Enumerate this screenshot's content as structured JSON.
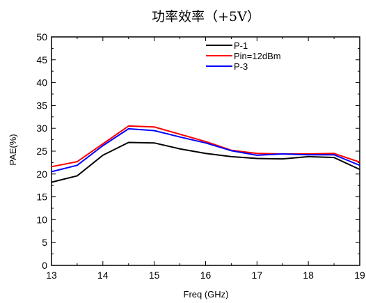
{
  "chart_data": {
    "type": "line",
    "title": "功率效率（+5V）",
    "xlabel": "Freq (GHz)",
    "ylabel": "PAE(%)",
    "xlim": [
      13,
      19
    ],
    "ylim": [
      0,
      50
    ],
    "xticks": [
      13,
      14,
      15,
      16,
      17,
      18,
      19
    ],
    "yticks": [
      0,
      5,
      10,
      15,
      20,
      25,
      30,
      35,
      40,
      45,
      50
    ],
    "grid": false,
    "legend_position": "top-right",
    "x": [
      13,
      13.5,
      14,
      14.5,
      15,
      15.5,
      16,
      16.5,
      17,
      17.5,
      18,
      18.5,
      19
    ],
    "series": [
      {
        "name": "P-1",
        "color": "#000000",
        "values": [
          18.2,
          19.6,
          24.1,
          26.9,
          26.8,
          25.5,
          24.5,
          23.8,
          23.4,
          23.3,
          23.8,
          23.6,
          21.0
        ]
      },
      {
        "name": "Pin=12dBm",
        "color": "#ff0000",
        "values": [
          21.6,
          22.7,
          26.6,
          30.5,
          30.3,
          28.7,
          27.1,
          25.2,
          24.5,
          24.4,
          24.4,
          24.5,
          22.6
        ]
      },
      {
        "name": "P-3",
        "color": "#0000ff",
        "values": [
          20.5,
          21.9,
          26.2,
          29.9,
          29.5,
          28.1,
          26.8,
          25.1,
          24.1,
          24.4,
          24.2,
          24.2,
          21.9
        ]
      }
    ]
  }
}
